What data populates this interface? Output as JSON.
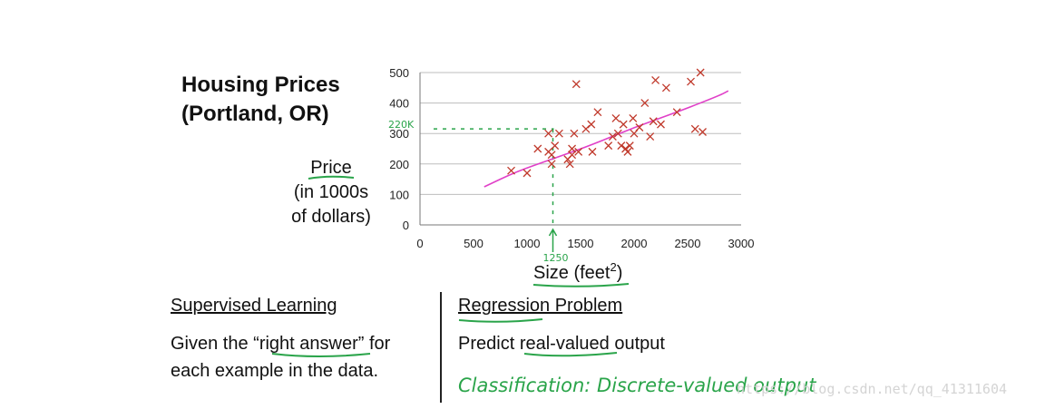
{
  "chart_data": {
    "type": "scatter",
    "title_line1": "Housing Prices",
    "title_line2": "(Portland, OR)",
    "ylabel_lines": [
      "Price",
      "(in 1000s",
      "of dollars)"
    ],
    "xlabel": "Size (feet",
    "xlabel_sup": "2",
    "xlabel_close": ")",
    "xlim": [
      0,
      3000
    ],
    "ylim": [
      0,
      500
    ],
    "x_ticks": [
      0,
      500,
      1000,
      1500,
      2000,
      2500,
      3000
    ],
    "y_ticks": [
      0,
      100,
      200,
      300,
      400,
      500
    ],
    "grid": true,
    "points": [
      {
        "x": 852,
        "y": 178
      },
      {
        "x": 1000,
        "y": 170
      },
      {
        "x": 1100,
        "y": 250
      },
      {
        "x": 1200,
        "y": 300
      },
      {
        "x": 1200,
        "y": 240
      },
      {
        "x": 1230,
        "y": 230
      },
      {
        "x": 1230,
        "y": 200
      },
      {
        "x": 1260,
        "y": 260
      },
      {
        "x": 1300,
        "y": 300
      },
      {
        "x": 1380,
        "y": 215
      },
      {
        "x": 1400,
        "y": 200
      },
      {
        "x": 1420,
        "y": 250
      },
      {
        "x": 1420,
        "y": 230
      },
      {
        "x": 1440,
        "y": 300
      },
      {
        "x": 1460,
        "y": 462
      },
      {
        "x": 1480,
        "y": 240
      },
      {
        "x": 1550,
        "y": 315
      },
      {
        "x": 1600,
        "y": 330
      },
      {
        "x": 1610,
        "y": 240
      },
      {
        "x": 1660,
        "y": 370
      },
      {
        "x": 1760,
        "y": 260
      },
      {
        "x": 1800,
        "y": 290
      },
      {
        "x": 1830,
        "y": 350
      },
      {
        "x": 1850,
        "y": 300
      },
      {
        "x": 1880,
        "y": 260
      },
      {
        "x": 1900,
        "y": 330
      },
      {
        "x": 1920,
        "y": 250
      },
      {
        "x": 1940,
        "y": 240
      },
      {
        "x": 1960,
        "y": 260
      },
      {
        "x": 1990,
        "y": 350
      },
      {
        "x": 2000,
        "y": 300
      },
      {
        "x": 2050,
        "y": 320
      },
      {
        "x": 2100,
        "y": 400
      },
      {
        "x": 2150,
        "y": 290
      },
      {
        "x": 2180,
        "y": 340
      },
      {
        "x": 2200,
        "y": 475
      },
      {
        "x": 2250,
        "y": 330
      },
      {
        "x": 2300,
        "y": 450
      },
      {
        "x": 2400,
        "y": 370
      },
      {
        "x": 2530,
        "y": 470
      },
      {
        "x": 2570,
        "y": 315
      },
      {
        "x": 2620,
        "y": 500
      },
      {
        "x": 2640,
        "y": 305
      }
    ],
    "fit_curve": [
      {
        "x": 600,
        "y": 125
      },
      {
        "x": 900,
        "y": 175
      },
      {
        "x": 1250,
        "y": 218
      },
      {
        "x": 1600,
        "y": 262
      },
      {
        "x": 2000,
        "y": 320
      },
      {
        "x": 2400,
        "y": 370
      },
      {
        "x": 2800,
        "y": 425
      },
      {
        "x": 2880,
        "y": 440
      }
    ],
    "annotation_query_x": 1250,
    "annotation_query_y": 220,
    "annotation_x_label": "1250",
    "annotation_y_label": "220K",
    "colors": {
      "point": "#c0392b",
      "fit": "#e040c8",
      "annotation": "#2aa44a",
      "grid": "#bdbdbd",
      "axis": "#777777"
    }
  },
  "left_section": {
    "heading": "Supervised Learning",
    "line1_pre": "Given the “",
    "line1_em": "right answer",
    "line1_post": "” for",
    "line2": "each example in the data."
  },
  "right_section": {
    "heading": "Regression Problem",
    "line1_pre": "Predict ",
    "line1_em": "real-valued",
    "line1_post": " output",
    "handwritten": "Classification: Discrete-valued output"
  },
  "watermark": "https://blog.csdn.net/qq_41311604"
}
